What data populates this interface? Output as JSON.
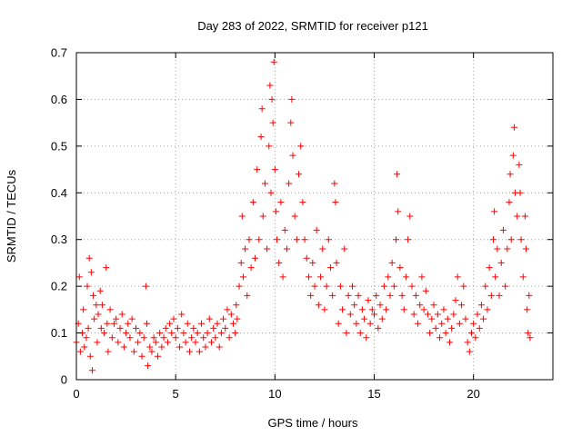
{
  "chart_data": {
    "type": "scatter",
    "title": "Day 283 of 2022, SRMTID for receiver p121",
    "xlabel": "GPS time / hours",
    "ylabel": "SRMTID / TECUs",
    "xlim": [
      0,
      24
    ],
    "ylim": [
      0,
      0.7
    ],
    "xticks": [
      0,
      5,
      10,
      15,
      20
    ],
    "yticks": [
      0,
      0.1,
      0.2,
      0.3,
      0.4,
      0.5,
      0.6,
      0.7
    ],
    "xtick_labels": [
      "0",
      "5",
      "10",
      "15",
      "20"
    ],
    "ytick_labels": [
      "0",
      "0.1",
      "0.2",
      "0.3",
      "0.4",
      "0.5",
      "0.6",
      "0.7"
    ],
    "grid": true,
    "marker": "+",
    "color": "#ff0000",
    "series": [
      {
        "name": "SRMTID",
        "points": [
          [
            0.0,
            0.08
          ],
          [
            0.1,
            0.12
          ],
          [
            0.15,
            0.22
          ],
          [
            0.2,
            0.06
          ],
          [
            0.3,
            0.1
          ],
          [
            0.35,
            0.15
          ],
          [
            0.4,
            0.07
          ],
          [
            0.5,
            0.09
          ],
          [
            0.55,
            0.2
          ],
          [
            0.6,
            0.11
          ],
          [
            0.65,
            0.26
          ],
          [
            0.7,
            0.05
          ],
          [
            0.75,
            0.23
          ],
          [
            0.8,
            0.02
          ],
          [
            0.85,
            0.18
          ],
          [
            0.9,
            0.13
          ],
          [
            1.0,
            0.16
          ],
          [
            1.05,
            0.08
          ],
          [
            1.1,
            0.14
          ],
          [
            1.2,
            0.19
          ],
          [
            1.25,
            0.11
          ],
          [
            1.3,
            0.16
          ],
          [
            1.4,
            0.1
          ],
          [
            1.5,
            0.24
          ],
          [
            1.55,
            0.12
          ],
          [
            1.6,
            0.06
          ],
          [
            1.7,
            0.15
          ],
          [
            1.8,
            0.09
          ],
          [
            1.9,
            0.12
          ],
          [
            2.0,
            0.13
          ],
          [
            2.1,
            0.08
          ],
          [
            2.2,
            0.11
          ],
          [
            2.3,
            0.14
          ],
          [
            2.4,
            0.07
          ],
          [
            2.5,
            0.1
          ],
          [
            2.6,
            0.12
          ],
          [
            2.7,
            0.09
          ],
          [
            2.8,
            0.13
          ],
          [
            2.9,
            0.06
          ],
          [
            3.0,
            0.11
          ],
          [
            3.1,
            0.08
          ],
          [
            3.2,
            0.1
          ],
          [
            3.3,
            0.05
          ],
          [
            3.4,
            0.09
          ],
          [
            3.5,
            0.2
          ],
          [
            3.55,
            0.12
          ],
          [
            3.6,
            0.03
          ],
          [
            3.7,
            0.07
          ],
          [
            3.8,
            0.06
          ],
          [
            3.9,
            0.09
          ],
          [
            4.0,
            0.08
          ],
          [
            4.1,
            0.05
          ],
          [
            4.2,
            0.1
          ],
          [
            4.3,
            0.07
          ],
          [
            4.4,
            0.09
          ],
          [
            4.5,
            0.11
          ],
          [
            4.6,
            0.08
          ],
          [
            4.7,
            0.12
          ],
          [
            4.8,
            0.1
          ],
          [
            4.9,
            0.13
          ],
          [
            5.0,
            0.09
          ],
          [
            5.1,
            0.11
          ],
          [
            5.2,
            0.07
          ],
          [
            5.3,
            0.14
          ],
          [
            5.4,
            0.1
          ],
          [
            5.5,
            0.08
          ],
          [
            5.6,
            0.12
          ],
          [
            5.7,
            0.06
          ],
          [
            5.8,
            0.09
          ],
          [
            5.9,
            0.11
          ],
          [
            6.0,
            0.08
          ],
          [
            6.1,
            0.1
          ],
          [
            6.2,
            0.06
          ],
          [
            6.3,
            0.12
          ],
          [
            6.4,
            0.09
          ],
          [
            6.5,
            0.07
          ],
          [
            6.6,
            0.1
          ],
          [
            6.7,
            0.13
          ],
          [
            6.8,
            0.08
          ],
          [
            6.9,
            0.11
          ],
          [
            7.0,
            0.09
          ],
          [
            7.1,
            0.12
          ],
          [
            7.2,
            0.07
          ],
          [
            7.3,
            0.1
          ],
          [
            7.4,
            0.13
          ],
          [
            7.5,
            0.11
          ],
          [
            7.6,
            0.15
          ],
          [
            7.7,
            0.09
          ],
          [
            7.8,
            0.14
          ],
          [
            7.9,
            0.12
          ],
          [
            8.0,
            0.1
          ],
          [
            8.05,
            0.16
          ],
          [
            8.1,
            0.13
          ],
          [
            8.2,
            0.2
          ],
          [
            8.3,
            0.25
          ],
          [
            8.35,
            0.35
          ],
          [
            8.4,
            0.22
          ],
          [
            8.5,
            0.28
          ],
          [
            8.6,
            0.18
          ],
          [
            8.7,
            0.3
          ],
          [
            8.8,
            0.24
          ],
          [
            8.9,
            0.38
          ],
          [
            9.0,
            0.26
          ],
          [
            9.1,
            0.45
          ],
          [
            9.2,
            0.3
          ],
          [
            9.3,
            0.52
          ],
          [
            9.35,
            0.58
          ],
          [
            9.4,
            0.35
          ],
          [
            9.5,
            0.42
          ],
          [
            9.6,
            0.28
          ],
          [
            9.7,
            0.5
          ],
          [
            9.75,
            0.63
          ],
          [
            9.8,
            0.4
          ],
          [
            9.85,
            0.6
          ],
          [
            9.9,
            0.55
          ],
          [
            9.95,
            0.68
          ],
          [
            10.0,
            0.45
          ],
          [
            10.05,
            0.36
          ],
          [
            10.1,
            0.3
          ],
          [
            10.2,
            0.25
          ],
          [
            10.3,
            0.38
          ],
          [
            10.4,
            0.22
          ],
          [
            10.5,
            0.32
          ],
          [
            10.6,
            0.28
          ],
          [
            10.7,
            0.42
          ],
          [
            10.8,
            0.55
          ],
          [
            10.85,
            0.6
          ],
          [
            10.9,
            0.48
          ],
          [
            11.0,
            0.35
          ],
          [
            11.1,
            0.3
          ],
          [
            11.2,
            0.44
          ],
          [
            11.3,
            0.5
          ],
          [
            11.4,
            0.38
          ],
          [
            11.5,
            0.3
          ],
          [
            11.6,
            0.26
          ],
          [
            11.7,
            0.22
          ],
          [
            11.8,
            0.18
          ],
          [
            11.9,
            0.25
          ],
          [
            12.0,
            0.2
          ],
          [
            12.1,
            0.32
          ],
          [
            12.2,
            0.16
          ],
          [
            12.3,
            0.22
          ],
          [
            12.4,
            0.28
          ],
          [
            12.5,
            0.15
          ],
          [
            12.6,
            0.2
          ],
          [
            12.7,
            0.3
          ],
          [
            12.8,
            0.24
          ],
          [
            12.9,
            0.18
          ],
          [
            13.0,
            0.42
          ],
          [
            13.05,
            0.38
          ],
          [
            13.1,
            0.25
          ],
          [
            13.2,
            0.12
          ],
          [
            13.3,
            0.2
          ],
          [
            13.4,
            0.15
          ],
          [
            13.5,
            0.28
          ],
          [
            13.6,
            0.1
          ],
          [
            13.7,
            0.18
          ],
          [
            13.8,
            0.14
          ],
          [
            13.9,
            0.2
          ],
          [
            14.0,
            0.16
          ],
          [
            14.1,
            0.12
          ],
          [
            14.2,
            0.18
          ],
          [
            14.3,
            0.1
          ],
          [
            14.4,
            0.15
          ],
          [
            14.5,
            0.13
          ],
          [
            14.6,
            0.09
          ],
          [
            14.7,
            0.17
          ],
          [
            14.8,
            0.12
          ],
          [
            14.9,
            0.15
          ],
          [
            15.0,
            0.14
          ],
          [
            15.1,
            0.18
          ],
          [
            15.2,
            0.11
          ],
          [
            15.3,
            0.16
          ],
          [
            15.4,
            0.13
          ],
          [
            15.5,
            0.2
          ],
          [
            15.6,
            0.15
          ],
          [
            15.7,
            0.22
          ],
          [
            15.8,
            0.18
          ],
          [
            15.9,
            0.25
          ],
          [
            16.0,
            0.2
          ],
          [
            16.1,
            0.3
          ],
          [
            16.15,
            0.44
          ],
          [
            16.2,
            0.36
          ],
          [
            16.3,
            0.24
          ],
          [
            16.4,
            0.18
          ],
          [
            16.5,
            0.15
          ],
          [
            16.6,
            0.22
          ],
          [
            16.7,
            0.3
          ],
          [
            16.8,
            0.35
          ],
          [
            16.9,
            0.2
          ],
          [
            17.0,
            0.14
          ],
          [
            17.1,
            0.18
          ],
          [
            17.2,
            0.12
          ],
          [
            17.3,
            0.16
          ],
          [
            17.4,
            0.22
          ],
          [
            17.5,
            0.15
          ],
          [
            17.6,
            0.19
          ],
          [
            17.7,
            0.14
          ],
          [
            17.8,
            0.1
          ],
          [
            17.9,
            0.13
          ],
          [
            18.0,
            0.16
          ],
          [
            18.1,
            0.11
          ],
          [
            18.2,
            0.14
          ],
          [
            18.3,
            0.09
          ],
          [
            18.4,
            0.12
          ],
          [
            18.5,
            0.15
          ],
          [
            18.6,
            0.1
          ],
          [
            18.7,
            0.13
          ],
          [
            18.8,
            0.08
          ],
          [
            18.9,
            0.11
          ],
          [
            19.0,
            0.14
          ],
          [
            19.1,
            0.17
          ],
          [
            19.2,
            0.22
          ],
          [
            19.3,
            0.12
          ],
          [
            19.4,
            0.16
          ],
          [
            19.5,
            0.2
          ],
          [
            19.6,
            0.13
          ],
          [
            19.7,
            0.08
          ],
          [
            19.8,
            0.06
          ],
          [
            19.9,
            0.1
          ],
          [
            20.0,
            0.12
          ],
          [
            20.1,
            0.09
          ],
          [
            20.2,
            0.14
          ],
          [
            20.3,
            0.11
          ],
          [
            20.4,
            0.16
          ],
          [
            20.5,
            0.13
          ],
          [
            20.6,
            0.2
          ],
          [
            20.7,
            0.15
          ],
          [
            20.8,
            0.24
          ],
          [
            20.9,
            0.18
          ],
          [
            21.0,
            0.3
          ],
          [
            21.05,
            0.36
          ],
          [
            21.1,
            0.22
          ],
          [
            21.2,
            0.28
          ],
          [
            21.3,
            0.18
          ],
          [
            21.4,
            0.25
          ],
          [
            21.5,
            0.32
          ],
          [
            21.6,
            0.2
          ],
          [
            21.7,
            0.28
          ],
          [
            21.8,
            0.38
          ],
          [
            21.85,
            0.44
          ],
          [
            21.9,
            0.3
          ],
          [
            22.0,
            0.48
          ],
          [
            22.05,
            0.54
          ],
          [
            22.1,
            0.4
          ],
          [
            22.2,
            0.35
          ],
          [
            22.3,
            0.46
          ],
          [
            22.35,
            0.4
          ],
          [
            22.4,
            0.3
          ],
          [
            22.5,
            0.22
          ],
          [
            22.6,
            0.35
          ],
          [
            22.65,
            0.28
          ],
          [
            22.7,
            0.15
          ],
          [
            22.75,
            0.1
          ],
          [
            22.8,
            0.18
          ],
          [
            22.85,
            0.09
          ]
        ]
      }
    ]
  }
}
